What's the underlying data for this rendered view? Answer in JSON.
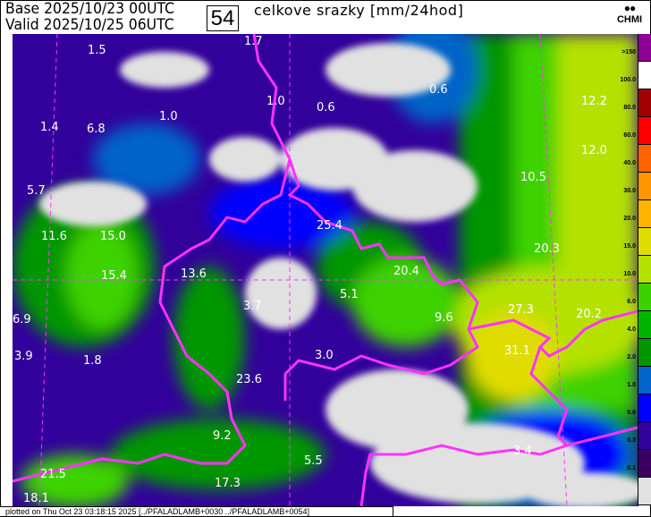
{
  "header": {
    "base_label": "Base",
    "base_value": "2025/10/23 00UTC",
    "valid_label": "Valid",
    "valid_value": "2025/10/25 06UTC",
    "forecast_hour": "54",
    "title": "celkove srazky [mm/24hod]",
    "logo_text": "CHMI"
  },
  "legend": {
    "labels": [
      ">150",
      "100.0",
      "80.0",
      "60.0",
      "40.0",
      "30.0",
      "20.0",
      "15.0",
      "10.0",
      "6.0",
      "4.0",
      "2.0",
      "1.0",
      "0.6",
      "0.3",
      "0.1"
    ],
    "colors": [
      "#8c0096",
      "#ffffff",
      "#a00000",
      "#ff0000",
      "#ff6400",
      "#ff9600",
      "#ffb400",
      "#e1dc00",
      "#b4e100",
      "#3cd200",
      "#00b400",
      "#009600",
      "#0064c8",
      "#0000ff",
      "#32009b",
      "#3c0064",
      "#e1e1e1"
    ]
  },
  "map": {
    "value_labels": [
      "1.7",
      "1.5",
      "0.6",
      "1.0",
      "0.6",
      "1.0",
      "1.4",
      "6.8",
      "12.2",
      "12.0",
      "10.5",
      "5.7",
      "25.4",
      "11.6",
      "15.0",
      "20.3",
      "20.4",
      "15.4",
      "13.6",
      "5.1",
      "3.7",
      "27.3",
      "9.6",
      "20.2",
      "6.9",
      "31.1",
      "3.9",
      "1.8",
      "3.0",
      "23.6",
      "9.2",
      "3.4",
      "5.5",
      "21.5",
      "17.3",
      "18.1"
    ],
    "border_color": "#ff32ff"
  },
  "footer": {
    "text": "plotted on Thu Oct 23 03:18:15 2025 [../PFALADLAMB+0030 ../PFALADLAMB+0054]"
  }
}
